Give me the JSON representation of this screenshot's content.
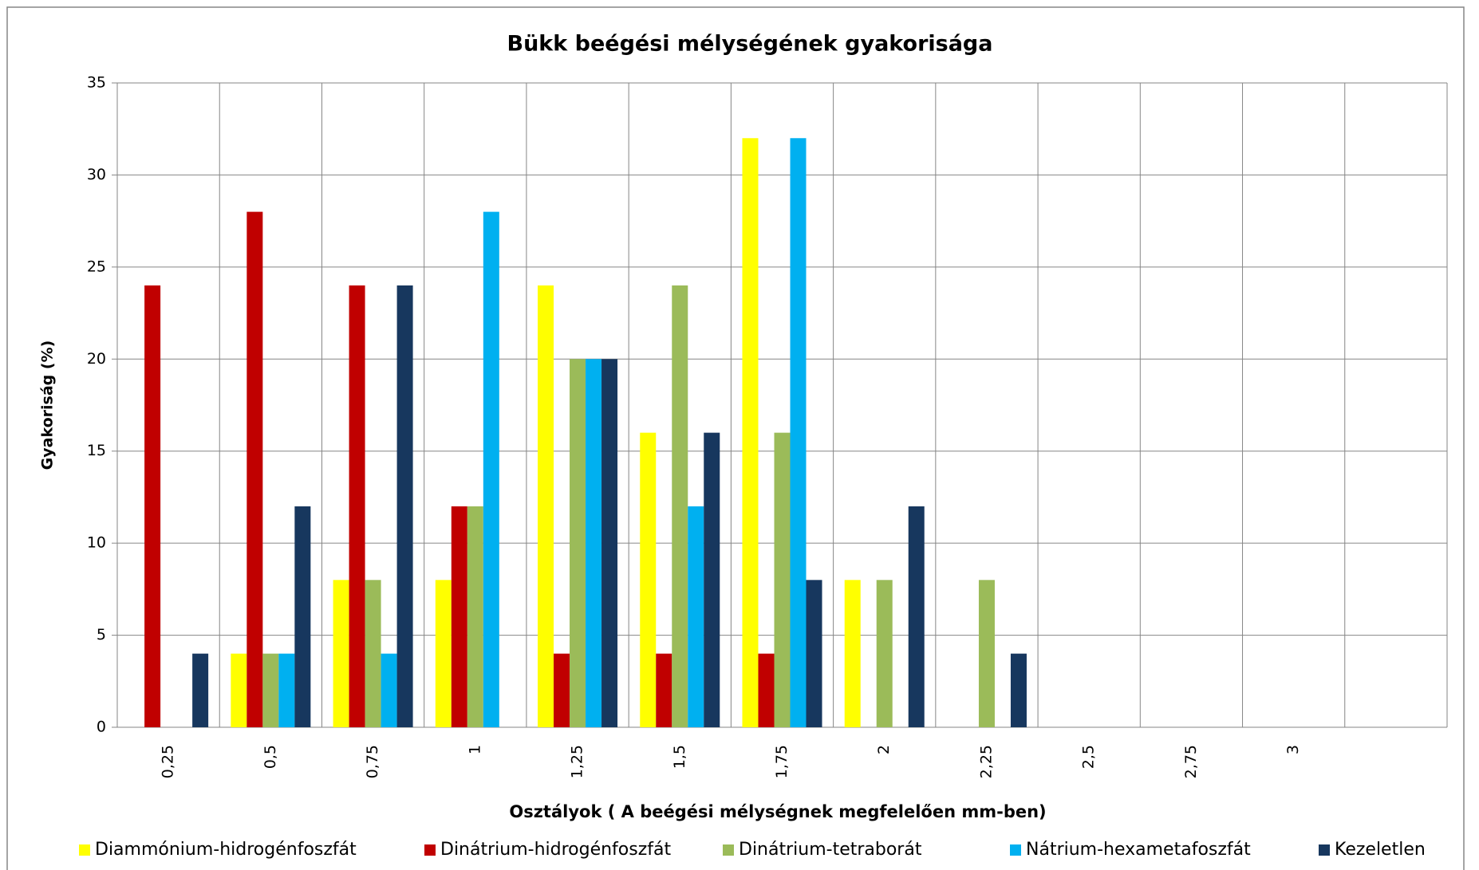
{
  "chart_data": {
    "type": "bar",
    "title": "Bükk beégési mélységének gyakorisága",
    "x_label": "Osztályok ( A beégési mélységnek megfelelően mm-ben)",
    "y_label": "Gyakoriság (%)",
    "categories": [
      "0,25",
      "0,5",
      "0,75",
      "1",
      "1,25",
      "1,5",
      "1,75",
      "2",
      "2,25",
      "2,5",
      "2,75",
      "3",
      null
    ],
    "series": [
      {
        "name": "Diammónium-hidrogénfoszfát",
        "color": "#ffff00",
        "values": [
          0,
          4,
          8,
          8,
          24,
          16,
          32,
          8,
          0,
          0,
          0,
          0,
          0
        ]
      },
      {
        "name": "Dinátrium-hidrogénfoszfát",
        "color": "#c00000",
        "values": [
          24,
          28,
          24,
          12,
          4,
          4,
          4,
          0,
          0,
          0,
          0,
          0,
          0
        ]
      },
      {
        "name": "Dinátrium-tetraborát",
        "color": "#9bbb59",
        "values": [
          0,
          4,
          8,
          12,
          20,
          24,
          16,
          8,
          8,
          0,
          0,
          0,
          0
        ]
      },
      {
        "name": "Nátrium-hexametafoszfát",
        "color": "#00b0f0",
        "values": [
          0,
          4,
          4,
          28,
          20,
          12,
          32,
          0,
          0,
          0,
          0,
          0,
          0
        ]
      },
      {
        "name": "Kezeletlen",
        "color": "#17375e",
        "values": [
          4,
          12,
          24,
          0,
          20,
          16,
          8,
          12,
          4,
          0,
          0,
          0,
          0
        ]
      }
    ],
    "ylim": [
      0,
      35
    ],
    "yticks": [
      0,
      5,
      10,
      15,
      20,
      25,
      30,
      35
    ],
    "grid": true,
    "legend": "bottom"
  }
}
